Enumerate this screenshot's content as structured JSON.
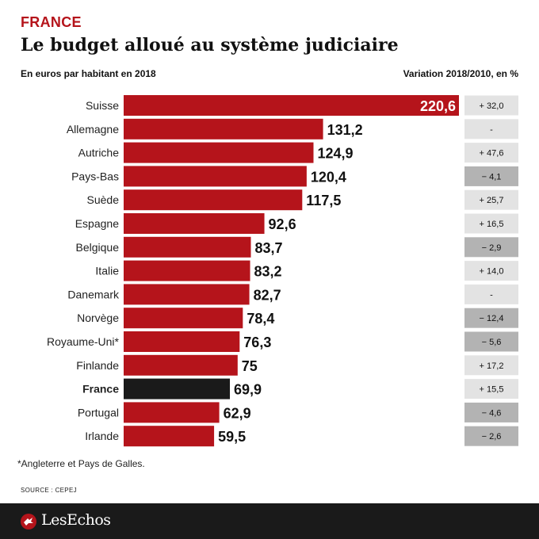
{
  "header": {
    "kicker": "FRANCE",
    "title": "Le budget alloué au système judiciaire",
    "subtitle_left": "En euros par habitant en 2018",
    "subtitle_right": "Variation 2018/2010, en %"
  },
  "chart_data": {
    "type": "bar",
    "orientation": "horizontal",
    "categories": [
      "Suisse",
      "Allemagne",
      "Autriche",
      "Pays-Bas",
      "Suède",
      "Espagne",
      "Belgique",
      "Italie",
      "Danemark",
      "Norvège",
      "Royaume-Uni*",
      "Finlande",
      "France",
      "Portugal",
      "Irlande"
    ],
    "values": [
      220.6,
      131.2,
      124.9,
      120.4,
      117.5,
      92.6,
      83.7,
      83.2,
      82.7,
      78.4,
      76.3,
      75,
      69.9,
      62.9,
      59.5
    ],
    "value_labels": [
      "220,6",
      "131,2",
      "124,9",
      "120,4",
      "117,5",
      "92,6",
      "83,7",
      "83,2",
      "82,7",
      "78,4",
      "76,3",
      "75",
      "69,9",
      "62,9",
      "59,5"
    ],
    "variation_labels": [
      "+ 32,0",
      "-",
      "+ 47,6",
      "− 4,1",
      "+ 25,7",
      "+ 16,5",
      "− 2,9",
      "+ 14,0",
      "-",
      "− 12,4",
      "− 5,6",
      "+ 17,2",
      "+ 15,5",
      "− 4,6",
      "− 2,6"
    ],
    "variation_negative": [
      false,
      false,
      false,
      true,
      false,
      false,
      true,
      false,
      false,
      true,
      true,
      false,
      false,
      true,
      true
    ],
    "highlight": "France",
    "colors": {
      "bar": "#b5141b",
      "highlight_bar": "#1a1a1a",
      "variation_box": "#e3e3e3",
      "variation_box_negative": "#b3b3b3"
    }
  },
  "footnote": "*Angleterre et Pays de Galles.",
  "source": "SOURCE : CEPEJ",
  "footer": {
    "brand": "LesEchos",
    "icon": "les-echos-logo-icon"
  }
}
